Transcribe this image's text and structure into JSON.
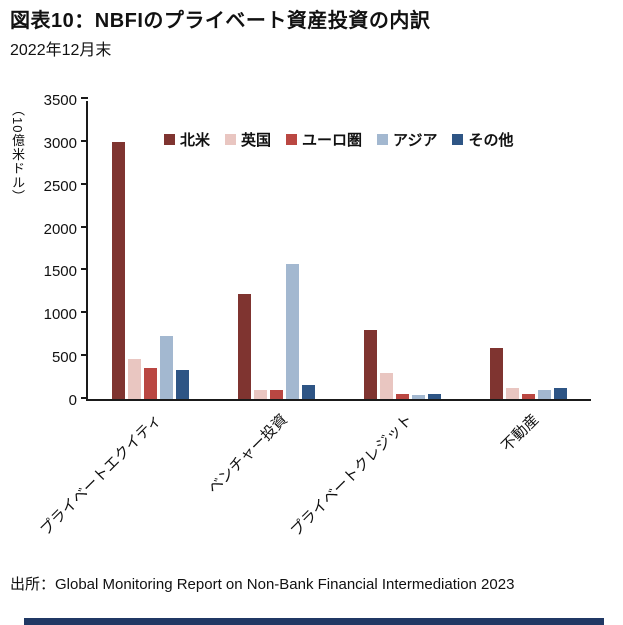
{
  "header": {
    "title": "図表10：NBFIのプライベート資産投資の内訳",
    "subtitle": "2022年12月末"
  },
  "chart_data": {
    "type": "bar",
    "title": "",
    "xlabel": "",
    "ylabel": "（10億米ドル）",
    "ylim": [
      0,
      3500
    ],
    "ytick_step": 500,
    "grid": false,
    "legend_position": "top-inside",
    "categories": [
      "プライベートエクイティ",
      "ベンチャー投資",
      "プライベートクレジット",
      "不動産"
    ],
    "series": [
      {
        "name": "北米",
        "color": "#7F3430",
        "values": [
          3000,
          1230,
          800,
          600
        ]
      },
      {
        "name": "英国",
        "color": "#E9C6C1",
        "values": [
          470,
          110,
          300,
          130
        ]
      },
      {
        "name": "ユーロ圏",
        "color": "#BA4742",
        "values": [
          360,
          110,
          55,
          60
        ]
      },
      {
        "name": "アジア",
        "color": "#A3B8D0",
        "values": [
          740,
          1580,
          50,
          110
        ]
      },
      {
        "name": "その他",
        "color": "#2E5585",
        "values": [
          340,
          160,
          55,
          130
        ]
      }
    ]
  },
  "footer": {
    "source": "出所：Global Monitoring Report on Non-Bank Financial Intermediation 2023"
  },
  "colors": {
    "axis": "#1a1a1a",
    "bottom_strip": "#203864"
  }
}
